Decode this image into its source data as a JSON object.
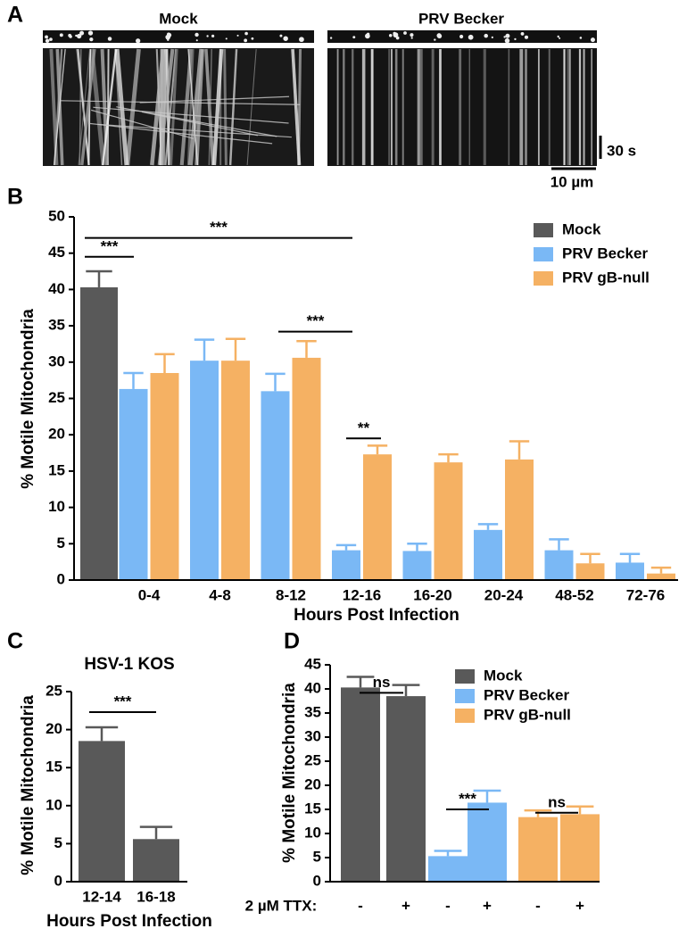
{
  "panel_a": {
    "panel": "A",
    "labels": [
      "Mock",
      "PRV Becker"
    ],
    "time_scale": "30 s",
    "length_scale": "10 µm"
  },
  "chart_data": [
    {
      "type": "bar",
      "panel": "B",
      "y_label": "% Motile Mitochondria",
      "x_label": "Hours Post Infection",
      "categories": [
        null,
        "0-4",
        "4-8",
        "8-12",
        "12-16",
        "16-20",
        "20-24",
        "48-52",
        "72-76"
      ],
      "series": [
        {
          "name": "Mock",
          "color": "#595959",
          "values": [
            40.3,
            null,
            null,
            null,
            null,
            null,
            null,
            null,
            null
          ],
          "errors": [
            2.2,
            null,
            null,
            null,
            null,
            null,
            null,
            null,
            null
          ]
        },
        {
          "name": "PRV Becker",
          "color": "#7ab8f5",
          "values": [
            null,
            26.3,
            30.2,
            26.0,
            4.1,
            4.0,
            6.9,
            4.1,
            2.4
          ],
          "errors": [
            null,
            2.2,
            2.9,
            2.4,
            0.7,
            1.0,
            0.8,
            1.5,
            1.2
          ]
        },
        {
          "name": "PRV gB-null",
          "color": "#f5b163",
          "values": [
            null,
            28.5,
            30.2,
            30.6,
            17.3,
            16.2,
            16.6,
            2.3,
            0.9
          ],
          "errors": [
            null,
            2.6,
            3.0,
            2.3,
            1.2,
            1.1,
            2.5,
            1.3,
            0.8
          ]
        }
      ],
      "ylim": [
        0,
        50
      ],
      "yticks": [
        0,
        5,
        10,
        15,
        20,
        25,
        30,
        35,
        40,
        45,
        50
      ],
      "legend": "upper right",
      "annotations": [
        "***",
        "***",
        "***",
        "**"
      ]
    },
    {
      "type": "bar",
      "panel": "C",
      "title": "HSV-1 KOS",
      "y_label": "% Motile Mitochondria",
      "x_label": "Hours Post Infection",
      "categories": [
        "12-14",
        "16-18"
      ],
      "values": [
        18.5,
        5.6
      ],
      "errors": [
        1.8,
        1.6
      ],
      "color": "#595959",
      "ylim": [
        0,
        25
      ],
      "yticks": [
        0,
        5,
        10,
        15,
        20,
        25
      ],
      "annotations": [
        "***"
      ]
    },
    {
      "type": "bar",
      "panel": "D",
      "y_label": "% Motile Mitochondria",
      "x_row_label": "2 µM TTX:",
      "categories": [
        "-",
        "+",
        "-",
        "+",
        "-",
        "+"
      ],
      "series": [
        {
          "name": "Mock",
          "color": "#595959",
          "values": [
            40.3,
            38.5,
            null,
            null,
            null,
            null
          ],
          "errors": [
            2.2,
            2.3,
            null,
            null,
            null,
            null
          ]
        },
        {
          "name": "PRV Becker",
          "color": "#7ab8f5",
          "values": [
            null,
            null,
            5.3,
            16.4,
            null,
            null
          ],
          "errors": [
            null,
            null,
            1.1,
            2.5,
            null,
            null
          ]
        },
        {
          "name": "PRV gB-null",
          "color": "#f5b163",
          "values": [
            null,
            null,
            null,
            null,
            13.4,
            14.0
          ],
          "errors": [
            null,
            null,
            null,
            null,
            1.4,
            1.6
          ]
        }
      ],
      "ylim": [
        0,
        45
      ],
      "yticks": [
        0,
        5,
        10,
        15,
        20,
        25,
        30,
        35,
        40,
        45
      ],
      "legend": "upper right",
      "annotations": [
        "ns",
        "***",
        "ns"
      ]
    }
  ]
}
